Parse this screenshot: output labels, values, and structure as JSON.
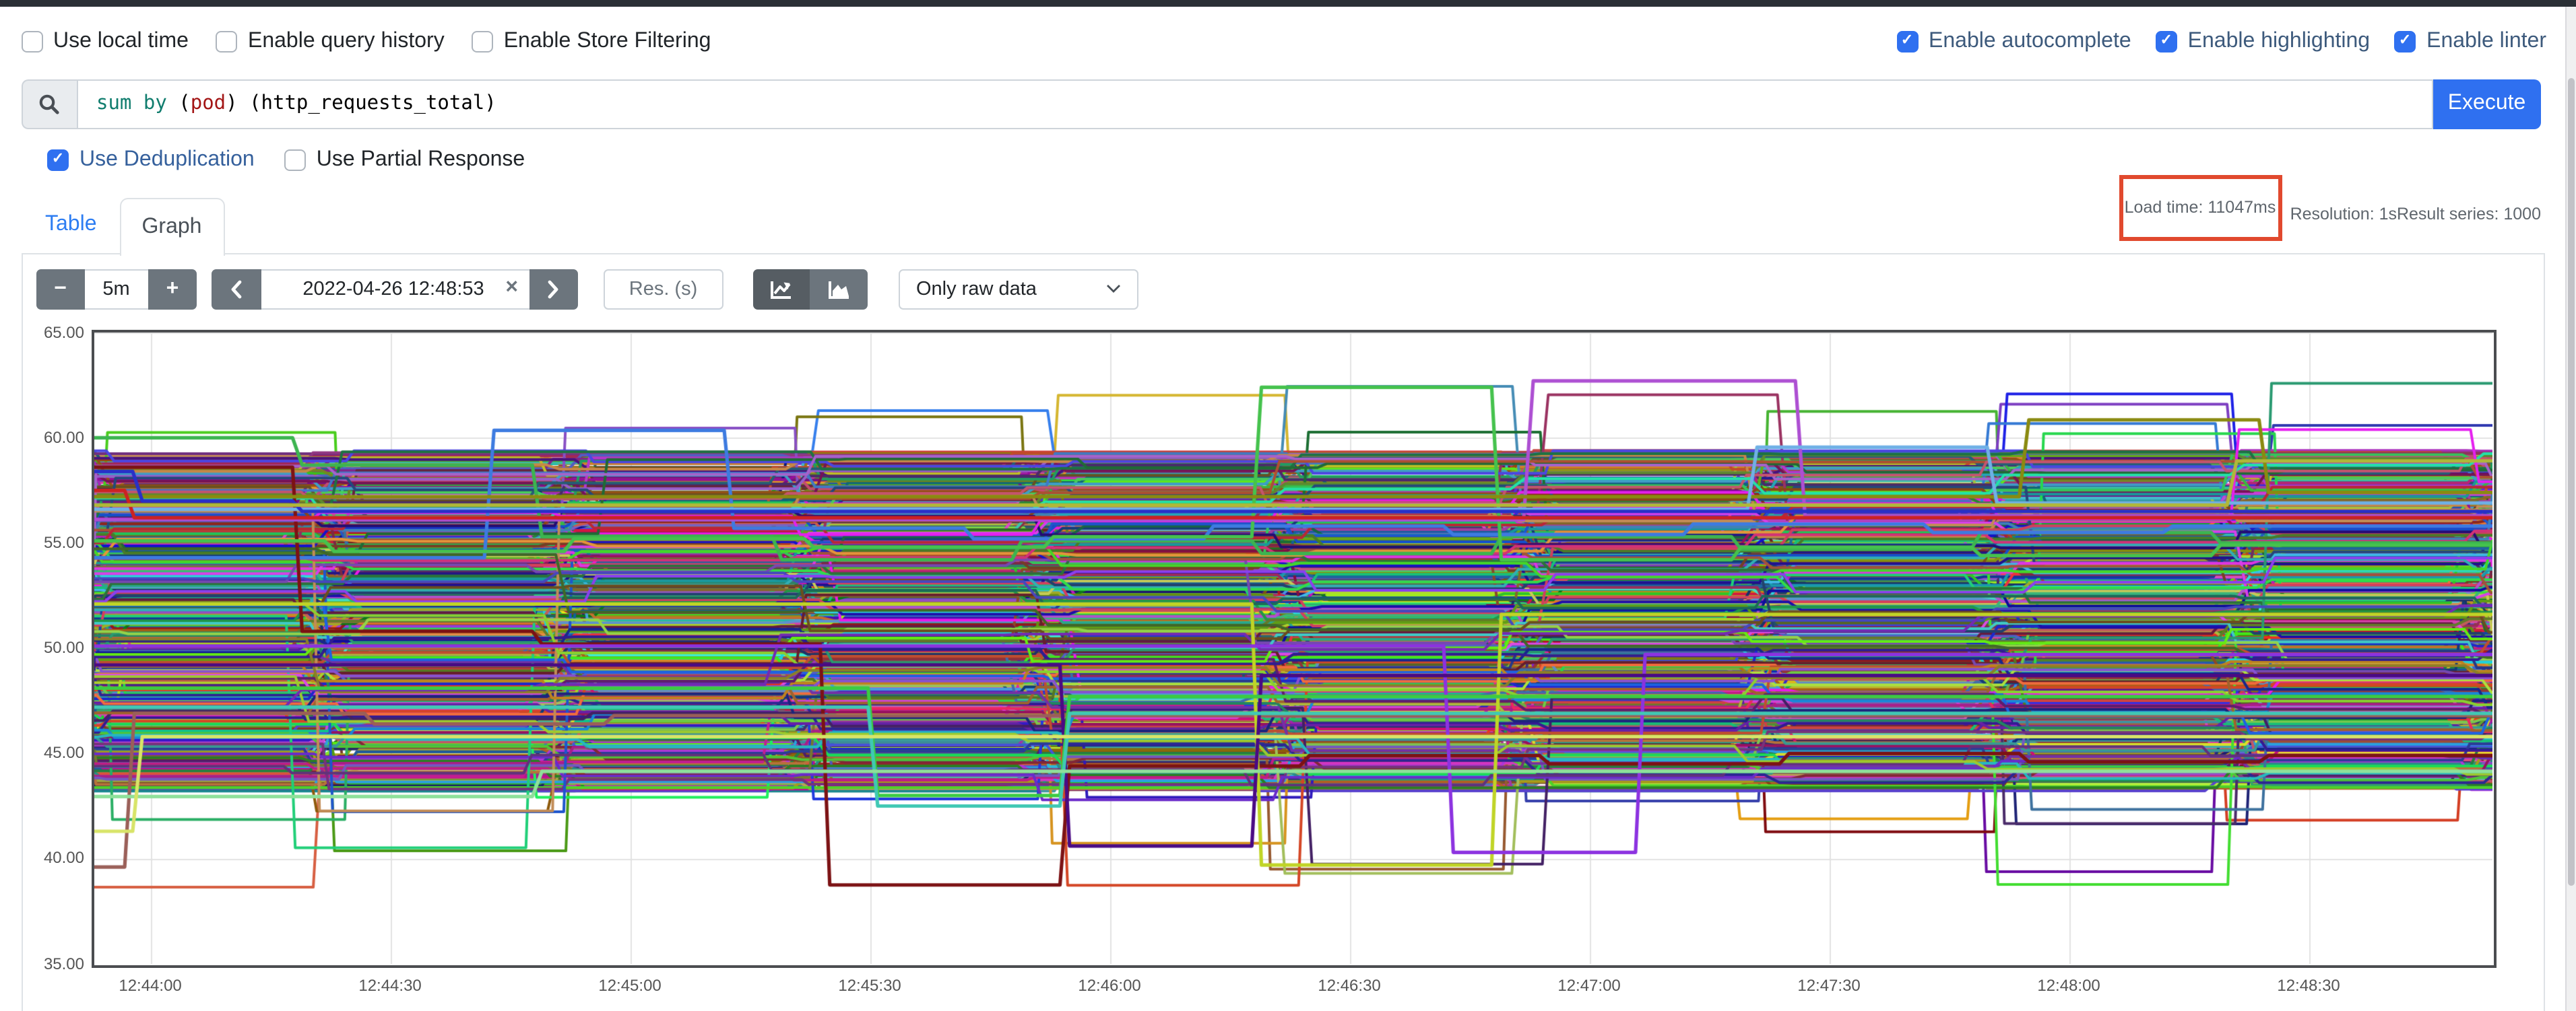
{
  "page": {
    "accent_blue": "#2f70f0",
    "link_blue": "#2d7df2",
    "toggle_label_blue": "#3d5a7c",
    "navbar_color": "#2a2f35",
    "annotation_red": "#e1492e"
  },
  "options_left": [
    {
      "label": "Use local time",
      "checked": false
    },
    {
      "label": "Enable query history",
      "checked": false
    },
    {
      "label": "Enable Store Filtering",
      "checked": false
    }
  ],
  "options_right": [
    {
      "label": "Enable autocomplete",
      "checked": true
    },
    {
      "label": "Enable highlighting",
      "checked": true
    },
    {
      "label": "Enable linter",
      "checked": true
    }
  ],
  "query": {
    "expression": "sum by (pod) (http_requests_total)",
    "tokens": [
      {
        "text": "sum",
        "color": "#107d6e"
      },
      {
        "text": " ",
        "color": "#000000"
      },
      {
        "text": "by",
        "color": "#107d6e"
      },
      {
        "text": " (",
        "color": "#000000"
      },
      {
        "text": "pod",
        "color": "#a31515"
      },
      {
        "text": ") (http_requests_total)",
        "color": "#000000"
      }
    ],
    "execute_label": "Execute",
    "search_icon": "magnifier-icon"
  },
  "dedup_row": [
    {
      "label": "Use Deduplication",
      "checked": true,
      "accent": true
    },
    {
      "label": "Use Partial Response",
      "checked": false,
      "accent": false
    }
  ],
  "tabs": {
    "table": "Table",
    "graph": "Graph",
    "active": "Graph"
  },
  "stats": {
    "load_time": "Load time: 11047ms",
    "resolution": "Resolution: 1s",
    "result_series": "Result series: 1000"
  },
  "controls": {
    "range_minus": "−",
    "range_value": "5m",
    "range_plus": "+",
    "time_value": "2022-04-26 12:48:53",
    "time_clear": "×",
    "res_placeholder": "Res. (s)",
    "raw_data_select": "Only raw data",
    "chart_type_icons": [
      "line-chart-icon",
      "stacked-chart-icon"
    ],
    "active_chart_type": "line"
  },
  "chart_data": {
    "type": "line",
    "title": "",
    "xlabel": "",
    "ylabel": "",
    "x_start": "12:43:53",
    "x_end": "12:48:53",
    "x_ticks": [
      "12:44:00",
      "12:44:30",
      "12:45:00",
      "12:45:30",
      "12:46:00",
      "12:46:30",
      "12:47:00",
      "12:47:30",
      "12:48:00",
      "12:48:30"
    ],
    "y_ticks": [
      65.0,
      60.0,
      55.0,
      50.0,
      45.0,
      40.0,
      35.0
    ],
    "y_tick_labels": [
      "65.00",
      "60.00",
      "55.00",
      "50.00",
      "45.00",
      "40.00",
      "35.00"
    ],
    "ylim": [
      35,
      65
    ],
    "grid": true,
    "legend": "none",
    "series_count": 1000,
    "step_seconds": 30,
    "value_band": [
      43.2,
      59.4
    ],
    "generator": {
      "seed": 1337,
      "phase_center_s": -7.5,
      "phase_spread_s": 5.5,
      "walk": 0.9,
      "jump_chance": 0.1,
      "excursion_chance": 0.035,
      "excursion_low": [
        38.6,
        43.0
      ],
      "excursion_high": [
        60.0,
        62.6
      ],
      "line_width": 2.0
    },
    "outlier_series": [
      {
        "color": "#3cb450",
        "steps": [
          [
            "12:43:53",
            60.0
          ],
          [
            "12:44:19",
            58.7
          ],
          [
            "12:44:49",
            55.3
          ],
          [
            "12:45:19",
            54.2
          ],
          [
            "12:45:49",
            55.1
          ],
          [
            "12:46:19",
            54.5
          ],
          [
            "12:46:49",
            55.3
          ],
          [
            "12:47:19",
            54.7
          ],
          [
            "12:47:49",
            55.5
          ],
          [
            "12:48:19",
            55.0
          ]
        ]
      },
      {
        "color": "#3d7be0",
        "steps": [
          [
            "12:43:53",
            54.3
          ],
          [
            "12:44:43",
            60.35
          ],
          [
            "12:45:13",
            55.7
          ],
          [
            "12:45:43",
            55.2
          ],
          [
            "12:46:13",
            55.8
          ],
          [
            "12:46:43",
            55.4
          ],
          [
            "12:47:13",
            55.9
          ],
          [
            "12:47:43",
            55.5
          ],
          [
            "12:48:13",
            55.8
          ]
        ]
      },
      {
        "color": "#7c1214",
        "steps": [
          [
            "12:43:53",
            58.6
          ],
          [
            "12:44:19",
            50.8
          ],
          [
            "12:44:49",
            50.2
          ],
          [
            "12:45:25",
            38.75
          ],
          [
            "12:45:55",
            44.4
          ],
          [
            "12:46:25",
            44.9
          ],
          [
            "12:46:55",
            44.5
          ],
          [
            "12:47:25",
            45.0
          ],
          [
            "12:47:55",
            44.6
          ],
          [
            "12:48:25",
            44.9
          ]
        ]
      },
      {
        "color": "#45c24d",
        "steps": [
          [
            "12:43:53",
            55.1
          ],
          [
            "12:44:23",
            54.6
          ],
          [
            "12:44:53",
            55.2
          ],
          [
            "12:45:23",
            54.8
          ],
          [
            "12:45:53",
            55.3
          ],
          [
            "12:46:19",
            62.4
          ],
          [
            "12:46:49",
            54.2
          ],
          [
            "12:47:19",
            54.8
          ],
          [
            "12:47:49",
            54.4
          ],
          [
            "12:48:19",
            54.9
          ]
        ]
      },
      {
        "color": "#ad4fd2",
        "steps": [
          [
            "12:43:53",
            56.1
          ],
          [
            "12:46:53",
            62.7
          ],
          [
            "12:47:27",
            56.3
          ]
        ]
      },
      {
        "color": "#8a8a10",
        "steps": [
          [
            "12:43:53",
            57.2
          ],
          [
            "12:47:55",
            60.85
          ],
          [
            "12:48:25",
            57.4
          ]
        ]
      },
      {
        "color": "#6fb0e6",
        "steps": [
          [
            "12:43:53",
            56.6
          ],
          [
            "12:47:21",
            59.55
          ],
          [
            "12:47:51",
            56.9
          ]
        ]
      },
      {
        "color": "#9a5f58",
        "steps": [
          [
            "12:43:53",
            39.6
          ],
          [
            "12:43:58",
            46.9
          ],
          [
            "12:44:28",
            46.4
          ],
          [
            "12:44:58",
            46.8
          ]
        ]
      },
      {
        "color": "#c0d426",
        "steps": [
          [
            "12:43:53",
            52.1
          ],
          [
            "12:46:19",
            39.7
          ],
          [
            "12:46:49",
            51.6
          ]
        ]
      },
      {
        "color": "#8c32e0",
        "steps": [
          [
            "12:43:53",
            50.1
          ],
          [
            "12:46:43",
            40.3
          ],
          [
            "12:47:07",
            49.7
          ]
        ]
      },
      {
        "color": "#4a0a84",
        "steps": [
          [
            "12:43:53",
            49.2
          ],
          [
            "12:45:55",
            40.6
          ],
          [
            "12:46:19",
            48.7
          ]
        ]
      },
      {
        "color": "#3bcc42",
        "steps": [
          [
            "12:43:53",
            48.1
          ],
          [
            "12:45:31",
            43.0
          ],
          [
            "12:45:55",
            47.7
          ]
        ]
      },
      {
        "color": "#40c8b4",
        "steps": [
          [
            "12:43:53",
            47.2
          ],
          [
            "12:45:31",
            42.5
          ],
          [
            "12:45:55",
            46.9
          ]
        ]
      },
      {
        "color": "#8ee09a",
        "steps": [
          [
            "12:43:53",
            42.95
          ],
          [
            "12:44:49",
            44.15
          ]
        ]
      },
      {
        "color": "#d8e468",
        "steps": [
          [
            "12:43:53",
            41.3
          ],
          [
            "12:43:59",
            45.8
          ]
        ]
      },
      {
        "color": "#2830c8",
        "steps": [
          [
            "12:43:53",
            58.4
          ],
          [
            "12:43:59",
            57.0
          ],
          [
            "12:44:19",
            56.5
          ]
        ]
      },
      {
        "color": "#cc2222",
        "steps": [
          [
            "12:43:53",
            57.5
          ],
          [
            "12:43:58",
            56.2
          ]
        ]
      },
      {
        "color": "#b0b838",
        "steps": [
          [
            "12:43:53",
            56.8
          ],
          [
            "12:48:21",
            58.9
          ]
        ]
      }
    ]
  }
}
